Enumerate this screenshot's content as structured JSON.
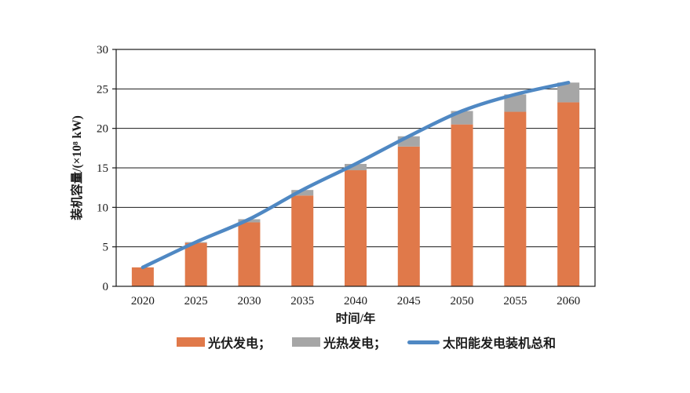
{
  "figure": {
    "background": "#ffffff"
  },
  "colors": {
    "pv_orange": "#E0794A",
    "csp_gray": "#A6A6A6",
    "total_blue": "#4F88C3",
    "ink": "#1a1a1a"
  },
  "legend": {
    "items": [
      {
        "label": "光伏发电；",
        "swatch": "bar",
        "color": "#E0794A"
      },
      {
        "label": "光热发电；",
        "swatch": "bar",
        "color": "#A6A6A6"
      },
      {
        "label": "太阳能发电装机总和",
        "swatch": "line",
        "color": "#4F88C3"
      }
    ]
  },
  "chart_data": {
    "type": "bar",
    "stacked": true,
    "categories": [
      "2020",
      "2025",
      "2030",
      "2035",
      "2040",
      "2045",
      "2050",
      "2055",
      "2060"
    ],
    "series": [
      {
        "name": "光伏发电",
        "type": "bar",
        "color": "#E0794A",
        "values": [
          2.4,
          5.5,
          8.1,
          11.5,
          14.7,
          17.7,
          20.5,
          22.1,
          23.3
        ]
      },
      {
        "name": "光热发电",
        "type": "bar",
        "color": "#A6A6A6",
        "values": [
          0,
          0.1,
          0.4,
          0.7,
          0.8,
          1.3,
          1.7,
          2.2,
          2.5
        ]
      },
      {
        "name": "太阳能发电装机总和",
        "type": "line",
        "color": "#4F88C3",
        "values": [
          2.4,
          5.6,
          8.5,
          12.2,
          15.5,
          19.0,
          22.2,
          24.3,
          25.8
        ]
      }
    ],
    "title": "",
    "xlabel": "时间/年",
    "ylabel": "装机容量/(×10⁸ kW)",
    "ylim": [
      0,
      30
    ],
    "yticks": [
      0,
      5,
      10,
      15,
      20,
      25,
      30
    ],
    "grid": "horizontal",
    "legend_position": "bottom"
  }
}
